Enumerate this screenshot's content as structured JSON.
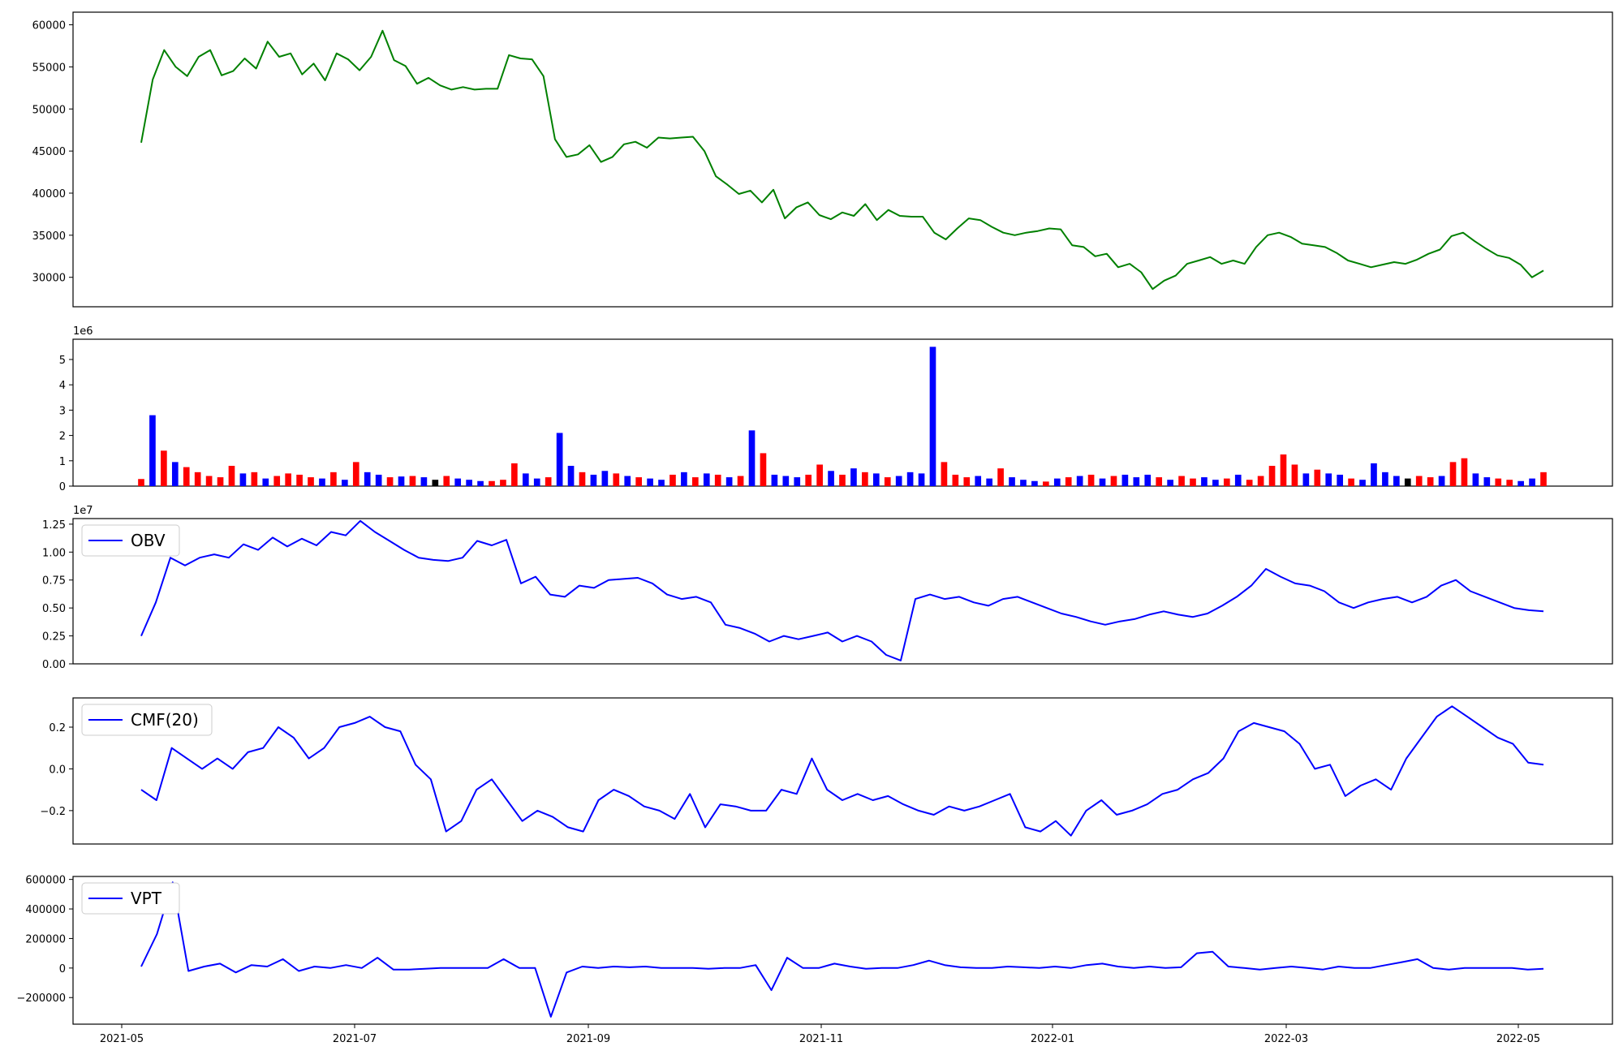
{
  "chart_data": [
    {
      "type": "line",
      "series": [
        {
          "color": "#008000",
          "values": [
            46000,
            53500,
            57000,
            55000,
            53900,
            56200,
            57000,
            54000,
            54500,
            56000,
            54800,
            58000,
            56200,
            56600,
            54100,
            55400,
            53400,
            56600,
            55900,
            54600,
            56200,
            59300,
            55800,
            55100,
            53000,
            53700,
            52800,
            52300,
            52600,
            52300,
            52400,
            52400,
            56400,
            56000,
            55900,
            53900,
            46400,
            44300,
            44600,
            45700,
            43700,
            44300,
            45800,
            46100,
            45400,
            46600,
            46500,
            46600,
            46700,
            45000,
            42000,
            41000,
            39900,
            40300,
            38900,
            40400,
            37000,
            38300,
            38900,
            37400,
            36900,
            37700,
            37300,
            38700,
            36800,
            38000,
            37300,
            37200,
            37200,
            35300,
            34500,
            35800,
            37000,
            36800,
            36000,
            35300,
            35000,
            35300,
            35500,
            35800,
            35700,
            33800,
            33600,
            32500,
            32800,
            31200,
            31600,
            30600,
            28600,
            29600,
            30200,
            31600,
            32000,
            32400,
            31600,
            32000,
            31600,
            33600,
            35000,
            35300,
            34800,
            34000,
            33800,
            33600,
            32900,
            32000,
            31600,
            31200,
            31500,
            31800,
            31600,
            32100,
            32800,
            33300,
            34900,
            35300,
            34300,
            33400,
            32600,
            32300,
            31500,
            30000,
            30800
          ]
        }
      ],
      "ylim": [
        26500,
        61500
      ],
      "yticks": [
        30000,
        35000,
        40000,
        45000,
        50000,
        55000,
        60000
      ]
    },
    {
      "type": "bar",
      "offset_label": "1e6",
      "ylim": [
        0,
        5.8
      ],
      "yticks": [
        0,
        1,
        2,
        3,
        4,
        5
      ],
      "values": [
        0.28,
        2.8,
        1.4,
        0.95,
        0.75,
        0.55,
        0.4,
        0.35,
        0.8,
        0.5,
        0.55,
        0.3,
        0.4,
        0.5,
        0.45,
        0.35,
        0.3,
        0.55,
        0.25,
        0.95,
        0.55,
        0.45,
        0.35,
        0.38,
        0.4,
        0.35,
        0.25,
        0.4,
        0.3,
        0.25,
        0.2,
        0.2,
        0.25,
        0.9,
        0.5,
        0.3,
        0.35,
        2.1,
        0.8,
        0.55,
        0.45,
        0.6,
        0.5,
        0.4,
        0.35,
        0.3,
        0.25,
        0.45,
        0.55,
        0.35,
        0.5,
        0.45,
        0.35,
        0.4,
        2.2,
        1.3,
        0.45,
        0.4,
        0.35,
        0.45,
        0.85,
        0.6,
        0.45,
        0.7,
        0.55,
        0.5,
        0.35,
        0.4,
        0.55,
        0.5,
        5.5,
        0.95,
        0.45,
        0.35,
        0.4,
        0.3,
        0.7,
        0.35,
        0.25,
        0.2,
        0.18,
        0.3,
        0.35,
        0.4,
        0.45,
        0.3,
        0.4,
        0.45,
        0.35,
        0.45,
        0.35,
        0.25,
        0.4,
        0.3,
        0.35,
        0.25,
        0.3,
        0.45,
        0.25,
        0.4,
        0.8,
        1.25,
        0.85,
        0.5,
        0.65,
        0.5,
        0.45,
        0.3,
        0.25,
        0.9,
        0.55,
        0.4,
        0.3,
        0.4,
        0.35,
        0.4,
        0.95,
        1.1,
        0.5,
        0.35,
        0.3,
        0.25,
        0.2,
        0.3,
        0.55
      ],
      "colors": [
        "#ff0000",
        "#0000ff",
        "#ff0000",
        "#0000ff",
        "#ff0000",
        "#ff0000",
        "#ff0000",
        "#ff0000",
        "#ff0000",
        "#0000ff",
        "#ff0000",
        "#0000ff",
        "#ff0000",
        "#ff0000",
        "#ff0000",
        "#ff0000",
        "#0000ff",
        "#ff0000",
        "#0000ff",
        "#ff0000",
        "#0000ff",
        "#0000ff",
        "#ff0000",
        "#0000ff",
        "#ff0000",
        "#0000ff",
        "#000000",
        "#ff0000",
        "#0000ff",
        "#0000ff",
        "#0000ff",
        "#ff0000",
        "#ff0000",
        "#ff0000",
        "#0000ff",
        "#0000ff",
        "#ff0000",
        "#0000ff",
        "#0000ff",
        "#ff0000",
        "#0000ff",
        "#0000ff",
        "#ff0000",
        "#0000ff",
        "#ff0000",
        "#0000ff",
        "#0000ff",
        "#ff0000",
        "#0000ff",
        "#ff0000",
        "#0000ff",
        "#ff0000",
        "#0000ff",
        "#ff0000",
        "#0000ff",
        "#ff0000",
        "#0000ff",
        "#0000ff",
        "#0000ff",
        "#ff0000",
        "#ff0000",
        "#0000ff",
        "#ff0000",
        "#0000ff",
        "#ff0000",
        "#0000ff",
        "#ff0000",
        "#0000ff",
        "#0000ff",
        "#0000ff",
        "#0000ff",
        "#ff0000",
        "#ff0000",
        "#ff0000",
        "#0000ff",
        "#0000ff",
        "#ff0000",
        "#0000ff",
        "#0000ff",
        "#0000ff",
        "#ff0000",
        "#0000ff",
        "#ff0000",
        "#0000ff",
        "#ff0000",
        "#0000ff",
        "#ff0000",
        "#0000ff",
        "#0000ff",
        "#0000ff",
        "#ff0000",
        "#0000ff",
        "#ff0000",
        "#ff0000",
        "#0000ff",
        "#0000ff",
        "#ff0000",
        "#0000ff",
        "#ff0000",
        "#ff0000",
        "#ff0000",
        "#ff0000",
        "#ff0000",
        "#0000ff",
        "#ff0000",
        "#0000ff",
        "#0000ff",
        "#ff0000",
        "#0000ff",
        "#0000ff",
        "#0000ff",
        "#0000ff",
        "#000000",
        "#ff0000",
        "#ff0000",
        "#0000ff",
        "#ff0000",
        "#ff0000",
        "#0000ff",
        "#0000ff",
        "#ff0000",
        "#ff0000",
        "#0000ff",
        "#0000ff",
        "#ff0000"
      ]
    },
    {
      "type": "line",
      "offset_label": "1e7",
      "ylim": [
        0,
        1.3
      ],
      "yticks": [
        0.0,
        0.25,
        0.5,
        0.75,
        1.0,
        1.25
      ],
      "legend": "upper left",
      "series": [
        {
          "name": "OBV",
          "color": "#0000ff",
          "values": [
            0.25,
            0.55,
            0.95,
            0.88,
            0.95,
            0.98,
            0.95,
            1.07,
            1.02,
            1.13,
            1.05,
            1.12,
            1.06,
            1.18,
            1.15,
            1.28,
            1.18,
            1.1,
            1.02,
            0.95,
            0.93,
            0.92,
            0.95,
            1.1,
            1.06,
            1.11,
            0.72,
            0.78,
            0.62,
            0.6,
            0.7,
            0.68,
            0.75,
            0.76,
            0.77,
            0.72,
            0.62,
            0.58,
            0.6,
            0.55,
            0.35,
            0.32,
            0.27,
            0.2,
            0.25,
            0.22,
            0.25,
            0.28,
            0.2,
            0.25,
            0.2,
            0.08,
            0.03,
            0.58,
            0.62,
            0.58,
            0.6,
            0.55,
            0.52,
            0.58,
            0.6,
            0.55,
            0.5,
            0.45,
            0.42,
            0.38,
            0.35,
            0.38,
            0.4,
            0.44,
            0.47,
            0.44,
            0.42,
            0.45,
            0.52,
            0.6,
            0.7,
            0.85,
            0.78,
            0.72,
            0.7,
            0.65,
            0.55,
            0.5,
            0.55,
            0.58,
            0.6,
            0.55,
            0.6,
            0.7,
            0.75,
            0.65,
            0.6,
            0.55,
            0.5,
            0.48,
            0.47
          ]
        }
      ]
    },
    {
      "type": "line",
      "ylim": [
        -0.36,
        0.34
      ],
      "yticks": [
        -0.2,
        0.0,
        0.2
      ],
      "tick_labels": [
        "−0.2",
        "0.0",
        "0.2"
      ],
      "legend": "upper left",
      "series": [
        {
          "name": "CMF(20)",
          "color": "#0000ff",
          "values": [
            -0.1,
            -0.15,
            0.1,
            0.05,
            0.0,
            0.05,
            0.0,
            0.08,
            0.1,
            0.2,
            0.15,
            0.05,
            0.1,
            0.2,
            0.22,
            0.25,
            0.2,
            0.18,
            0.02,
            -0.05,
            -0.3,
            -0.25,
            -0.1,
            -0.05,
            -0.15,
            -0.25,
            -0.2,
            -0.23,
            -0.28,
            -0.3,
            -0.15,
            -0.1,
            -0.13,
            -0.18,
            -0.2,
            -0.24,
            -0.12,
            -0.28,
            -0.17,
            -0.18,
            -0.2,
            -0.2,
            -0.1,
            -0.12,
            0.05,
            -0.1,
            -0.15,
            -0.12,
            -0.15,
            -0.13,
            -0.17,
            -0.2,
            -0.22,
            -0.18,
            -0.2,
            -0.18,
            -0.15,
            -0.12,
            -0.28,
            -0.3,
            -0.25,
            -0.32,
            -0.2,
            -0.15,
            -0.22,
            -0.2,
            -0.17,
            -0.12,
            -0.1,
            -0.05,
            -0.02,
            0.05,
            0.18,
            0.22,
            0.2,
            0.18,
            0.12,
            0.0,
            0.02,
            -0.13,
            -0.08,
            -0.05,
            -0.1,
            0.05,
            0.15,
            0.25,
            0.3,
            0.25,
            0.2,
            0.15,
            0.12,
            0.03,
            0.02
          ]
        }
      ]
    },
    {
      "type": "line",
      "ylim": [
        -380000,
        620000
      ],
      "yticks": [
        -200000,
        0,
        200000,
        400000,
        600000
      ],
      "tick_labels": [
        "−200000",
        "0",
        "200000",
        "400000",
        "600000"
      ],
      "legend": "upper left",
      "series": [
        {
          "name": "VPT",
          "color": "#0000ff",
          "values": [
            10000,
            230000,
            580000,
            -20000,
            10000,
            30000,
            -30000,
            20000,
            10000,
            60000,
            -20000,
            10000,
            0,
            20000,
            0,
            70000,
            -10000,
            -10000,
            -5000,
            0,
            0,
            0,
            0,
            60000,
            0,
            0,
            -330000,
            -30000,
            10000,
            0,
            10000,
            5000,
            10000,
            0,
            0,
            0,
            -5000,
            0,
            0,
            20000,
            -150000,
            70000,
            0,
            0,
            30000,
            10000,
            -5000,
            0,
            0,
            20000,
            50000,
            20000,
            5000,
            0,
            0,
            10000,
            5000,
            0,
            10000,
            0,
            20000,
            30000,
            10000,
            0,
            10000,
            0,
            5000,
            100000,
            110000,
            10000,
            0,
            -10000,
            0,
            10000,
            0,
            -10000,
            10000,
            0,
            0,
            20000,
            40000,
            60000,
            0,
            -10000,
            0,
            0,
            0,
            0,
            -10000,
            -5000
          ]
        }
      ]
    }
  ],
  "x_axis": {
    "tick_labels": [
      "2021-05",
      "2021-07",
      "2021-09",
      "2021-11",
      "2022-01",
      "2022-03",
      "2022-05"
    ]
  }
}
